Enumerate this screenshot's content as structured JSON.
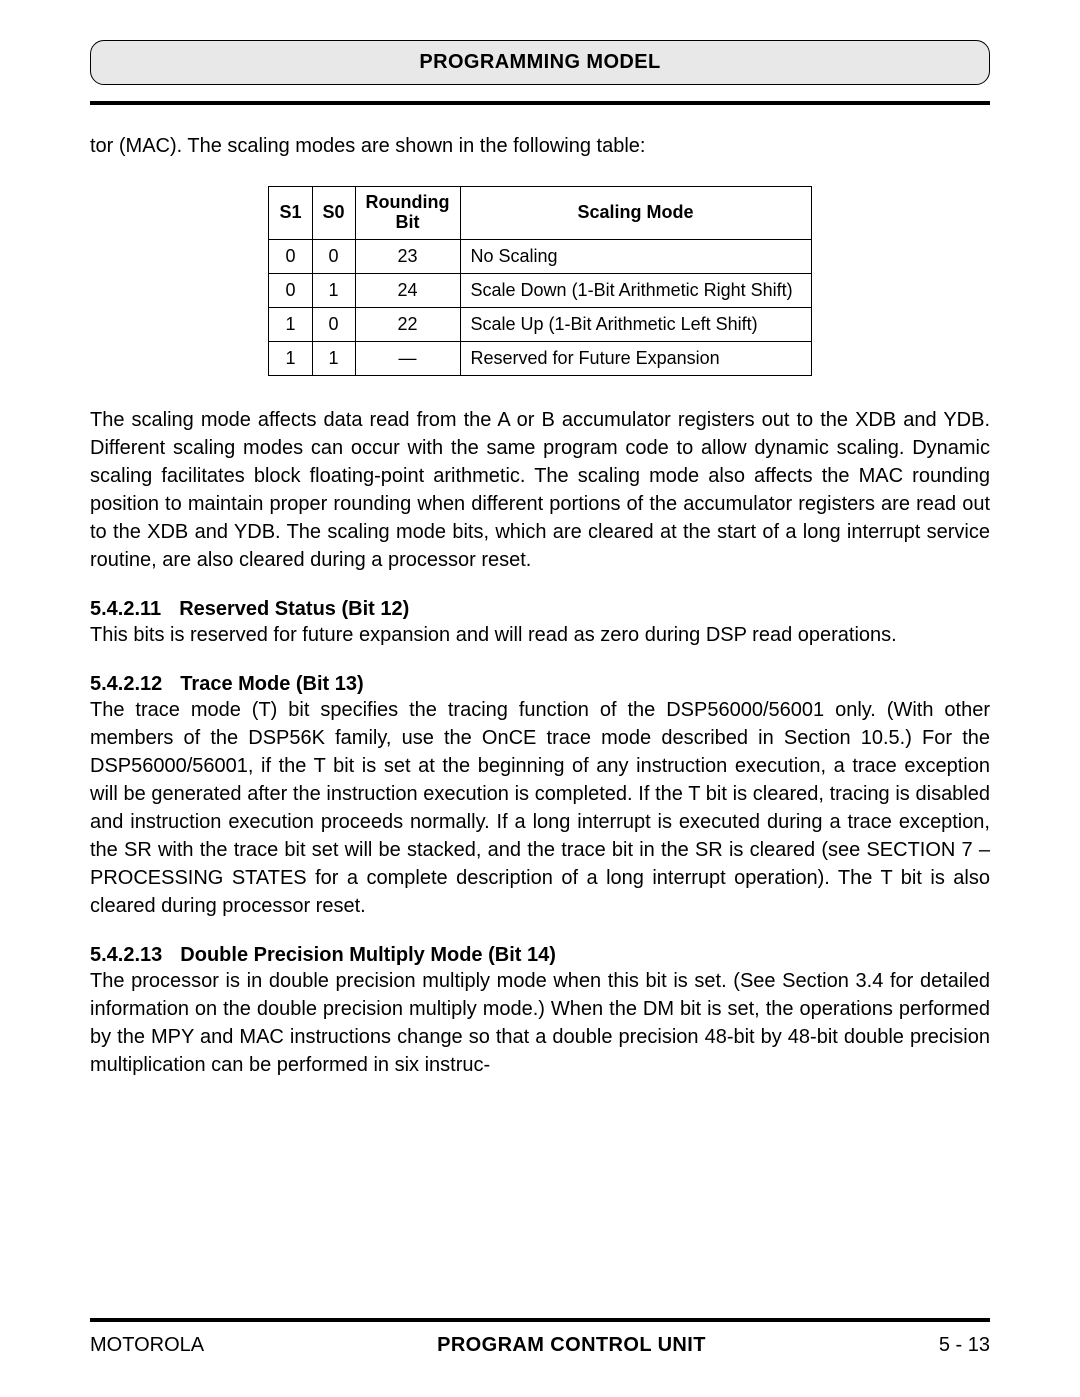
{
  "header": {
    "title": "PROGRAMMING MODEL"
  },
  "intro": "tor (MAC). The scaling modes are shown in the following table:",
  "table": {
    "headers": {
      "c1": "S1",
      "c2": "S0",
      "c3_l1": "Rounding",
      "c3_l2": "Bit",
      "c4": "Scaling Mode"
    },
    "rows": [
      {
        "s1": "0",
        "s0": "0",
        "rb": "23",
        "mode": "No Scaling"
      },
      {
        "s1": "0",
        "s0": "1",
        "rb": "24",
        "mode": "Scale Down (1-Bit Arithmetic Right Shift)"
      },
      {
        "s1": "1",
        "s0": "0",
        "rb": "22",
        "mode": "Scale Up (1-Bit Arithmetic Left Shift)"
      },
      {
        "s1": "1",
        "s0": "1",
        "rb": "—",
        "mode": "Reserved for Future Expansion"
      }
    ]
  },
  "para_scaling": "The scaling mode affects data read from the A or B accumulator registers out to the XDB and YDB. Different scaling modes can occur with the same program code to allow dynamic scaling. Dynamic scaling facilitates block floating-point arithmetic. The scaling mode also affects the MAC rounding position to maintain proper rounding when different portions of the accumulator registers are read out to the XDB and YDB. The scaling mode bits, which are cleared at the start of a long interrupt service routine, are also cleared during a processor reset.",
  "sec11": {
    "num": "5.4.2.11",
    "title": "Reserved Status (Bit 12)",
    "body": "This bits is reserved for future expansion and will read as zero during DSP read operations."
  },
  "sec12": {
    "num": "5.4.2.12",
    "title": "Trace Mode (Bit 13)",
    "body": "The trace mode (T) bit specifies the tracing function of the DSP56000/56001 only. (With other members of the DSP56K family, use the OnCE trace mode described in Section 10.5.) For the DSP56000/56001, if the T bit is set at the beginning of any instruction execution, a trace exception will be generated after the instruction execution is completed. If the T bit is cleared, tracing is disabled and instruction execution proceeds normally. If a long interrupt is executed during a trace exception, the SR with the trace bit set will be stacked, and the trace bit in the SR is cleared (see SECTION 7 – PROCESSING STATES for a complete description of a long interrupt operation). The T bit is also cleared during processor reset."
  },
  "sec13": {
    "num": "5.4.2.13",
    "title": "Double Precision Multiply Mode (Bit 14)",
    "body": "The processor is in double precision multiply mode when this bit is set. (See Section 3.4 for detailed information on the double precision multiply mode.) When the DM bit is set, the operations performed by the MPY and MAC instructions change so that a double precision 48-bit by 48-bit double precision multiplication can be performed in six instruc-"
  },
  "footer": {
    "left": "MOTOROLA",
    "center": "PROGRAM CONTROL UNIT",
    "right": "5 - 13"
  }
}
